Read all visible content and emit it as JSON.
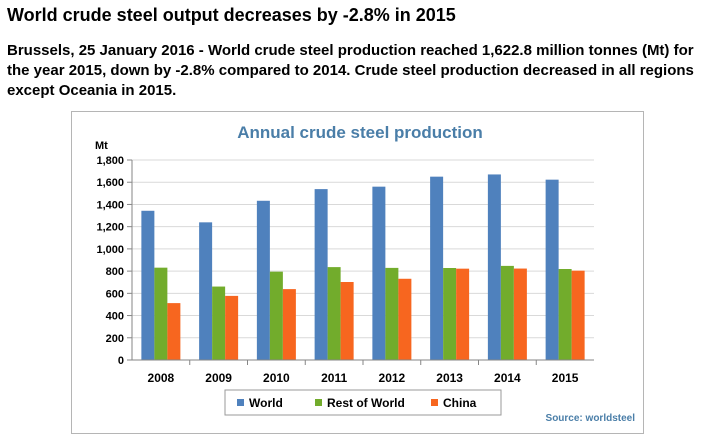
{
  "article": {
    "headline": "World crude steel output decreases by -2.8% in 2015",
    "lead": "Brussels, 25 January 2016 - World crude steel production reached 1,622.8 million tonnes (Mt) for the year 2015, down by -2.8% compared to 2014. Crude steel production decreased in all regions except Oceania in 2015."
  },
  "colors": {
    "title": "#4a7ea8",
    "grid": "#d9d9d9",
    "axis": "#868686",
    "source": "#4a7ea8"
  },
  "chart_data": {
    "type": "bar",
    "title": "Annual crude steel production",
    "ylabel": "Mt",
    "xlabel": "",
    "ylim": [
      0,
      1800
    ],
    "y_ticks": [
      "0",
      "200",
      "400",
      "600",
      "800",
      "1,000",
      "1,200",
      "1,400",
      "1,600",
      "1,800"
    ],
    "grid": true,
    "legend_position": "bottom",
    "categories": [
      "2008",
      "2009",
      "2010",
      "2011",
      "2012",
      "2013",
      "2014",
      "2015"
    ],
    "series": [
      {
        "name": "World",
        "color": "#4f81bd",
        "values": [
          1343,
          1239,
          1433,
          1538,
          1560,
          1650,
          1670,
          1623
        ]
      },
      {
        "name": "Rest of World",
        "color": "#72ac2c",
        "values": [
          831,
          661,
          795,
          836,
          829,
          828,
          847,
          819
        ]
      },
      {
        "name": "China",
        "color": "#f7661f",
        "values": [
          512,
          577,
          638,
          702,
          731,
          822,
          823,
          804
        ]
      }
    ],
    "source": "Source: worldsteel"
  }
}
